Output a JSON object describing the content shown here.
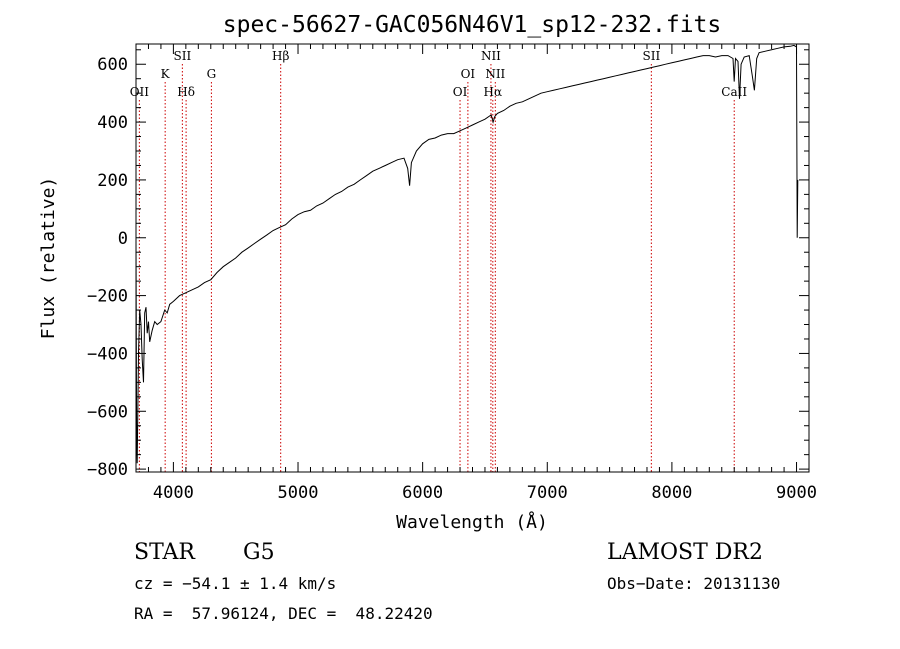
{
  "chart_data": {
    "type": "line",
    "title": "spec-56627-GAC056N46V1_sp12-232.fits",
    "xlabel": "Wavelength (Å)",
    "ylabel": "Flux (relative)",
    "xlim": [
      3700,
      9100
    ],
    "ylim": [
      -810,
      670
    ],
    "xticks": [
      4000,
      5000,
      6000,
      7000,
      8000,
      9000
    ],
    "xtick_labels": [
      "4000",
      "5000",
      "6000",
      "7000",
      "8000",
      "9000"
    ],
    "yticks": [
      -800,
      -600,
      -400,
      -200,
      0,
      200,
      400,
      600
    ],
    "ytick_labels": [
      "−800",
      "−600",
      "−400",
      "−200",
      "0",
      "200",
      "400",
      "600"
    ],
    "grid": false,
    "series": [
      {
        "line_color": "#000000",
        "points": [
          [
            3700,
            -10
          ],
          [
            3705,
            -680
          ],
          [
            3710,
            -780
          ],
          [
            3720,
            -400
          ],
          [
            3730,
            -250
          ],
          [
            3740,
            -300
          ],
          [
            3750,
            -420
          ],
          [
            3760,
            -500
          ],
          [
            3770,
            -260
          ],
          [
            3780,
            -240
          ],
          [
            3790,
            -330
          ],
          [
            3800,
            -290
          ],
          [
            3810,
            -360
          ],
          [
            3830,
            -320
          ],
          [
            3850,
            -290
          ],
          [
            3870,
            -300
          ],
          [
            3900,
            -290
          ],
          [
            3930,
            -250
          ],
          [
            3950,
            -260
          ],
          [
            3970,
            -230
          ],
          [
            4000,
            -220
          ],
          [
            4050,
            -200
          ],
          [
            4100,
            -190
          ],
          [
            4150,
            -180
          ],
          [
            4200,
            -170
          ],
          [
            4250,
            -155
          ],
          [
            4300,
            -145
          ],
          [
            4350,
            -120
          ],
          [
            4400,
            -100
          ],
          [
            4450,
            -85
          ],
          [
            4500,
            -70
          ],
          [
            4550,
            -50
          ],
          [
            4600,
            -35
          ],
          [
            4650,
            -20
          ],
          [
            4700,
            -5
          ],
          [
            4750,
            10
          ],
          [
            4800,
            25
          ],
          [
            4850,
            35
          ],
          [
            4900,
            45
          ],
          [
            4950,
            65
          ],
          [
            5000,
            80
          ],
          [
            5050,
            90
          ],
          [
            5100,
            95
          ],
          [
            5150,
            110
          ],
          [
            5200,
            120
          ],
          [
            5250,
            135
          ],
          [
            5300,
            150
          ],
          [
            5350,
            160
          ],
          [
            5400,
            175
          ],
          [
            5450,
            185
          ],
          [
            5500,
            200
          ],
          [
            5550,
            215
          ],
          [
            5600,
            230
          ],
          [
            5650,
            240
          ],
          [
            5700,
            250
          ],
          [
            5750,
            260
          ],
          [
            5800,
            270
          ],
          [
            5850,
            275
          ],
          [
            5880,
            240
          ],
          [
            5895,
            180
          ],
          [
            5910,
            260
          ],
          [
            5950,
            300
          ],
          [
            6000,
            325
          ],
          [
            6050,
            340
          ],
          [
            6100,
            345
          ],
          [
            6150,
            355
          ],
          [
            6200,
            360
          ],
          [
            6250,
            360
          ],
          [
            6300,
            370
          ],
          [
            6350,
            380
          ],
          [
            6400,
            390
          ],
          [
            6450,
            400
          ],
          [
            6500,
            410
          ],
          [
            6550,
            425
          ],
          [
            6565,
            400
          ],
          [
            6580,
            420
          ],
          [
            6600,
            430
          ],
          [
            6650,
            440
          ],
          [
            6700,
            455
          ],
          [
            6750,
            465
          ],
          [
            6800,
            470
          ],
          [
            6850,
            480
          ],
          [
            6900,
            490
          ],
          [
            6950,
            500
          ],
          [
            7000,
            505
          ],
          [
            7050,
            510
          ],
          [
            7100,
            515
          ],
          [
            7150,
            520
          ],
          [
            7200,
            525
          ],
          [
            7250,
            530
          ],
          [
            7300,
            535
          ],
          [
            7350,
            540
          ],
          [
            7400,
            545
          ],
          [
            7450,
            550
          ],
          [
            7500,
            555
          ],
          [
            7550,
            560
          ],
          [
            7600,
            565
          ],
          [
            7650,
            570
          ],
          [
            7700,
            575
          ],
          [
            7750,
            580
          ],
          [
            7800,
            585
          ],
          [
            7850,
            590
          ],
          [
            7900,
            595
          ],
          [
            7950,
            600
          ],
          [
            8000,
            605
          ],
          [
            8050,
            610
          ],
          [
            8100,
            615
          ],
          [
            8150,
            620
          ],
          [
            8200,
            625
          ],
          [
            8250,
            630
          ],
          [
            8300,
            630
          ],
          [
            8350,
            625
          ],
          [
            8400,
            630
          ],
          [
            8450,
            630
          ],
          [
            8490,
            620
          ],
          [
            8500,
            540
          ],
          [
            8510,
            620
          ],
          [
            8530,
            610
          ],
          [
            8542,
            480
          ],
          [
            8555,
            600
          ],
          [
            8580,
            625
          ],
          [
            8620,
            630
          ],
          [
            8645,
            560
          ],
          [
            8662,
            510
          ],
          [
            8680,
            620
          ],
          [
            8700,
            640
          ],
          [
            8750,
            645
          ],
          [
            8800,
            650
          ],
          [
            8850,
            655
          ],
          [
            8900,
            660
          ],
          [
            8950,
            662
          ],
          [
            8980,
            665
          ],
          [
            9000,
            660
          ],
          [
            9005,
            0
          ],
          [
            9010,
            200
          ]
        ]
      }
    ],
    "annotations": [
      {
        "text": "OII",
        "x": 3727,
        "row": 3
      },
      {
        "text": "K",
        "x": 3934,
        "row": 1
      },
      {
        "text": "SII",
        "x": 4072,
        "row": 0
      },
      {
        "text": "Hδ",
        "x": 4102,
        "row": 3
      },
      {
        "text": "G",
        "x": 4305,
        "row": 1
      },
      {
        "text": "Hβ",
        "x": 4861,
        "row": 0
      },
      {
        "text": "OI",
        "x": 6300,
        "row": 3
      },
      {
        "text": "OI",
        "x": 6363,
        "row": 1
      },
      {
        "text": "NII",
        "x": 6548,
        "row": 0
      },
      {
        "text": "NII",
        "x": 6583,
        "row": 1
      },
      {
        "text": "Hα",
        "x": 6563,
        "row": 3
      },
      {
        "text": "SII",
        "x": 7835,
        "row": 0
      },
      {
        "text": "CaII",
        "x": 8500,
        "row": 3
      }
    ],
    "line_marker_color": "#cc0000"
  },
  "info": {
    "object_class": "STAR",
    "subclass": "G5",
    "survey": "LAMOST DR2",
    "cz": "cz = −54.1 ± 1.4 km/s",
    "obs_date": "Obs−Date: 20131130",
    "coords": "RA =  57.96124, DEC =  48.22420"
  }
}
